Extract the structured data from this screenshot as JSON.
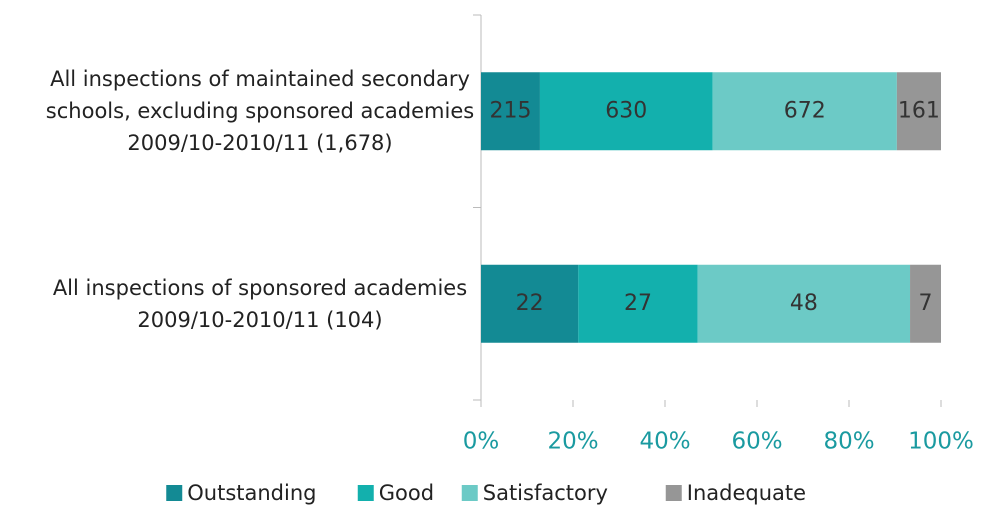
{
  "chart_data": {
    "type": "bar",
    "orientation": "horizontal",
    "stacking": "percent",
    "categories": [
      "All inspections of maintained secondary schools, excluding sponsored academies 2009/10-2010/11 (1,678)",
      "All inspections of sponsored academies 2009/10-2010/11 (104)"
    ],
    "series": [
      {
        "name": "Outstanding",
        "color": "#138a94",
        "values": [
          215,
          22
        ]
      },
      {
        "name": "Good",
        "color": "#13b0ad",
        "values": [
          630,
          27
        ]
      },
      {
        "name": "Satisfactory",
        "color": "#6ccac6",
        "values": [
          672,
          48
        ]
      },
      {
        "name": "Inadequate",
        "color": "#969696",
        "values": [
          161,
          7
        ]
      }
    ],
    "xlim": [
      0,
      100
    ],
    "xticks": [
      {
        "value": 0,
        "label": "0%"
      },
      {
        "value": 20,
        "label": "20%"
      },
      {
        "value": 40,
        "label": "40%"
      },
      {
        "value": 60,
        "label": "60%"
      },
      {
        "value": 80,
        "label": "80%"
      },
      {
        "value": 100,
        "label": "100%"
      }
    ],
    "legend": "bottom",
    "grid": false
  }
}
